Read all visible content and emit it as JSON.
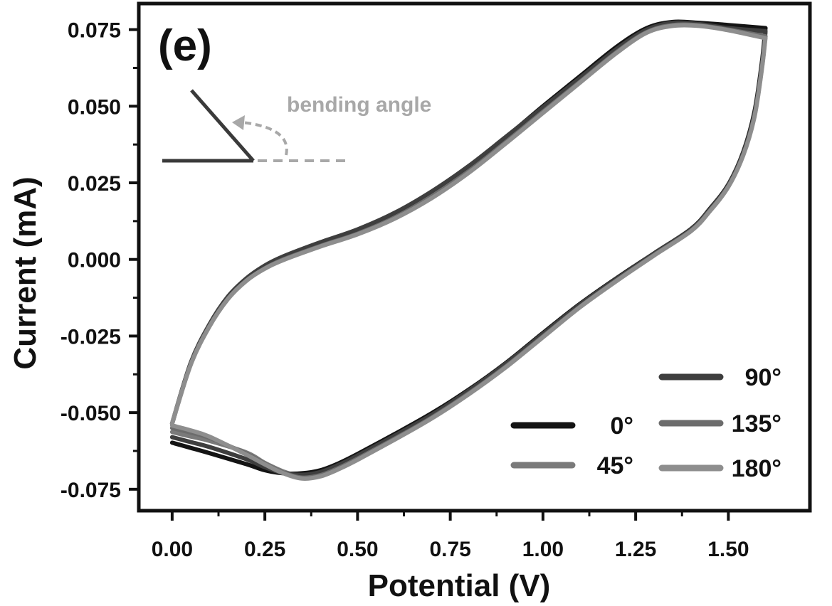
{
  "chart_data": {
    "type": "line",
    "panel_label": "(e)",
    "xlabel": "Potential (V)",
    "ylabel": "Current (mA)",
    "xlim": [
      -0.09,
      1.72
    ],
    "ylim": [
      -0.082,
      0.0835
    ],
    "xticks": [
      0.0,
      0.25,
      0.5,
      0.75,
      1.0,
      1.25,
      1.5
    ],
    "xtick_labels": [
      "0.00",
      "0.25",
      "0.50",
      "0.75",
      "1.00",
      "1.25",
      "1.50"
    ],
    "yticks": [
      0.075,
      0.05,
      0.025,
      0.0,
      -0.025,
      -0.05,
      -0.075
    ],
    "ytick_labels": [
      "0.075",
      "0.050",
      "0.025",
      "0.000",
      "-0.025",
      "-0.050",
      "-0.075"
    ],
    "grid": false,
    "legend_position": "bottom-right",
    "annotation": "bending angle",
    "series": [
      {
        "name": "0°",
        "color": "#141414",
        "forward": [
          [
            0.0,
            -0.0535
          ],
          [
            0.05,
            -0.034
          ],
          [
            0.1,
            -0.0215
          ],
          [
            0.15,
            -0.0125
          ],
          [
            0.2,
            -0.0065
          ],
          [
            0.25,
            -0.0025
          ],
          [
            0.3,
            0.0005
          ],
          [
            0.4,
            0.005
          ],
          [
            0.5,
            0.0092
          ],
          [
            0.6,
            0.0145
          ],
          [
            0.7,
            0.0215
          ],
          [
            0.8,
            0.03
          ],
          [
            0.9,
            0.0398
          ],
          [
            1.0,
            0.05
          ],
          [
            1.1,
            0.0598
          ],
          [
            1.2,
            0.0695
          ],
          [
            1.28,
            0.0755
          ],
          [
            1.35,
            0.0775
          ],
          [
            1.42,
            0.0772
          ],
          [
            1.5,
            0.0765
          ],
          [
            1.6,
            0.0755
          ]
        ],
        "reverse": [
          [
            1.6,
            0.0755
          ],
          [
            1.59,
            0.064
          ],
          [
            1.57,
            0.048
          ],
          [
            1.54,
            0.035
          ],
          [
            1.5,
            0.0245
          ],
          [
            1.45,
            0.0165
          ],
          [
            1.4,
            0.01
          ],
          [
            1.3,
            0.002
          ],
          [
            1.2,
            -0.006
          ],
          [
            1.1,
            -0.0145
          ],
          [
            1.0,
            -0.024
          ],
          [
            0.9,
            -0.0338
          ],
          [
            0.8,
            -0.0425
          ],
          [
            0.7,
            -0.0502
          ],
          [
            0.6,
            -0.057
          ],
          [
            0.5,
            -0.0635
          ],
          [
            0.45,
            -0.0665
          ],
          [
            0.4,
            -0.0688
          ],
          [
            0.35,
            -0.0698
          ],
          [
            0.3,
            -0.0698
          ],
          [
            0.25,
            -0.0688
          ],
          [
            0.2,
            -0.0668
          ],
          [
            0.1,
            -0.0632
          ],
          [
            0.05,
            -0.0615
          ],
          [
            0.0,
            -0.0598
          ]
        ]
      },
      {
        "name": "45°",
        "color": "#7a7a7a",
        "forward": [
          [
            0.0,
            -0.0535
          ],
          [
            0.05,
            -0.0342
          ],
          [
            0.1,
            -0.0218
          ],
          [
            0.15,
            -0.0128
          ],
          [
            0.2,
            -0.0068
          ],
          [
            0.25,
            -0.0028
          ],
          [
            0.3,
            0.0001
          ],
          [
            0.4,
            0.0045
          ],
          [
            0.5,
            0.0086
          ],
          [
            0.6,
            0.0138
          ],
          [
            0.7,
            0.0207
          ],
          [
            0.8,
            0.029
          ],
          [
            0.9,
            0.0386
          ],
          [
            1.0,
            0.0486
          ],
          [
            1.1,
            0.0584
          ],
          [
            1.2,
            0.0682
          ],
          [
            1.28,
            0.0745
          ],
          [
            1.35,
            0.0768
          ],
          [
            1.42,
            0.0766
          ],
          [
            1.5,
            0.0752
          ],
          [
            1.6,
            0.074
          ]
        ],
        "reverse": [
          [
            1.6,
            0.074
          ],
          [
            1.59,
            0.0628
          ],
          [
            1.57,
            0.047
          ],
          [
            1.54,
            0.0345
          ],
          [
            1.5,
            0.0242
          ],
          [
            1.45,
            0.0162
          ],
          [
            1.4,
            0.0098
          ],
          [
            1.3,
            0.0018
          ],
          [
            1.2,
            -0.0064
          ],
          [
            1.1,
            -0.015
          ],
          [
            1.0,
            -0.0247
          ],
          [
            0.9,
            -0.0345
          ],
          [
            0.8,
            -0.0433
          ],
          [
            0.7,
            -0.0512
          ],
          [
            0.6,
            -0.058
          ],
          [
            0.5,
            -0.0645
          ],
          [
            0.45,
            -0.0676
          ],
          [
            0.4,
            -0.07
          ],
          [
            0.35,
            -0.0708
          ],
          [
            0.3,
            -0.0692
          ],
          [
            0.25,
            -0.0664
          ],
          [
            0.2,
            -0.063
          ],
          [
            0.1,
            -0.0592
          ],
          [
            0.05,
            -0.0578
          ],
          [
            0.0,
            -0.0563
          ]
        ]
      },
      {
        "name": "90°",
        "color": "#3e3e3e",
        "forward": [
          [
            0.0,
            -0.0535
          ],
          [
            0.05,
            -0.0338
          ],
          [
            0.1,
            -0.0213
          ],
          [
            0.15,
            -0.0122
          ],
          [
            0.2,
            -0.0062
          ],
          [
            0.25,
            -0.002
          ],
          [
            0.3,
            0.001
          ],
          [
            0.4,
            0.0056
          ],
          [
            0.5,
            0.0098
          ],
          [
            0.6,
            0.0152
          ],
          [
            0.7,
            0.0222
          ],
          [
            0.8,
            0.0305
          ],
          [
            0.9,
            0.04
          ],
          [
            1.0,
            0.0496
          ],
          [
            1.1,
            0.0592
          ],
          [
            1.2,
            0.0688
          ],
          [
            1.28,
            0.075
          ],
          [
            1.35,
            0.0772
          ],
          [
            1.42,
            0.0768
          ],
          [
            1.5,
            0.0755
          ],
          [
            1.6,
            0.0745
          ]
        ],
        "reverse": [
          [
            1.6,
            0.0745
          ],
          [
            1.59,
            0.0632
          ],
          [
            1.57,
            0.0473
          ],
          [
            1.54,
            0.0347
          ],
          [
            1.5,
            0.0243
          ],
          [
            1.45,
            0.0163
          ],
          [
            1.4,
            0.0099
          ],
          [
            1.3,
            0.0019
          ],
          [
            1.2,
            -0.0062
          ],
          [
            1.1,
            -0.0147
          ],
          [
            1.0,
            -0.0243
          ],
          [
            0.9,
            -0.034
          ],
          [
            0.8,
            -0.0428
          ],
          [
            0.7,
            -0.0507
          ],
          [
            0.6,
            -0.0575
          ],
          [
            0.5,
            -0.064
          ],
          [
            0.45,
            -0.067
          ],
          [
            0.4,
            -0.0694
          ],
          [
            0.35,
            -0.0703
          ],
          [
            0.3,
            -0.0697
          ],
          [
            0.25,
            -0.0678
          ],
          [
            0.2,
            -0.0652
          ],
          [
            0.1,
            -0.0612
          ],
          [
            0.05,
            -0.0596
          ],
          [
            0.0,
            -0.058
          ]
        ]
      },
      {
        "name": "135°",
        "color": "#6c6c6c",
        "forward": [
          [
            0.0,
            -0.0535
          ],
          [
            0.05,
            -0.0343
          ],
          [
            0.1,
            -0.0219
          ],
          [
            0.15,
            -0.0129
          ],
          [
            0.2,
            -0.0069
          ],
          [
            0.25,
            -0.0029
          ],
          [
            0.3,
            0.0
          ],
          [
            0.4,
            0.0044
          ],
          [
            0.5,
            0.0084
          ],
          [
            0.6,
            0.0136
          ],
          [
            0.7,
            0.0204
          ],
          [
            0.8,
            0.0287
          ],
          [
            0.9,
            0.0383
          ],
          [
            1.0,
            0.0482
          ],
          [
            1.1,
            0.058
          ],
          [
            1.2,
            0.0678
          ],
          [
            1.28,
            0.0742
          ],
          [
            1.35,
            0.0765
          ],
          [
            1.42,
            0.0764
          ],
          [
            1.5,
            0.075
          ],
          [
            1.6,
            0.0728
          ]
        ],
        "reverse": [
          [
            1.6,
            0.0728
          ],
          [
            1.59,
            0.0622
          ],
          [
            1.57,
            0.0466
          ],
          [
            1.54,
            0.0341
          ],
          [
            1.5,
            0.0239
          ],
          [
            1.45,
            0.0159
          ],
          [
            1.4,
            0.0095
          ],
          [
            1.3,
            0.0015
          ],
          [
            1.2,
            -0.0067
          ],
          [
            1.1,
            -0.0154
          ],
          [
            1.0,
            -0.0251
          ],
          [
            0.9,
            -0.0349
          ],
          [
            0.8,
            -0.0437
          ],
          [
            0.7,
            -0.0516
          ],
          [
            0.6,
            -0.0585
          ],
          [
            0.5,
            -0.065
          ],
          [
            0.45,
            -0.068
          ],
          [
            0.4,
            -0.0704
          ],
          [
            0.35,
            -0.0712
          ],
          [
            0.3,
            -0.0696
          ],
          [
            0.25,
            -0.0667
          ],
          [
            0.2,
            -0.0634
          ],
          [
            0.1,
            -0.0582
          ],
          [
            0.05,
            -0.0565
          ],
          [
            0.0,
            -0.055
          ]
        ]
      },
      {
        "name": "180°",
        "color": "#8e8e8e",
        "forward": [
          [
            0.0,
            -0.0535
          ],
          [
            0.05,
            -0.0344
          ],
          [
            0.1,
            -0.022
          ],
          [
            0.15,
            -0.013
          ],
          [
            0.2,
            -0.007
          ],
          [
            0.25,
            -0.003
          ],
          [
            0.3,
            -0.0002
          ],
          [
            0.4,
            0.0042
          ],
          [
            0.5,
            0.0082
          ],
          [
            0.6,
            0.0133
          ],
          [
            0.7,
            0.02
          ],
          [
            0.8,
            0.0283
          ],
          [
            0.9,
            0.0379
          ],
          [
            1.0,
            0.0478
          ],
          [
            1.1,
            0.0577
          ],
          [
            1.2,
            0.0675
          ],
          [
            1.28,
            0.074
          ],
          [
            1.35,
            0.0762
          ],
          [
            1.42,
            0.0762
          ],
          [
            1.5,
            0.0748
          ],
          [
            1.6,
            0.0722
          ]
        ],
        "reverse": [
          [
            1.6,
            0.0722
          ],
          [
            1.59,
            0.0618
          ],
          [
            1.57,
            0.0463
          ],
          [
            1.54,
            0.0339
          ],
          [
            1.5,
            0.0237
          ],
          [
            1.45,
            0.0157
          ],
          [
            1.4,
            0.0093
          ],
          [
            1.3,
            0.0013
          ],
          [
            1.2,
            -0.0069
          ],
          [
            1.1,
            -0.0156
          ],
          [
            1.0,
            -0.0254
          ],
          [
            0.9,
            -0.0352
          ],
          [
            0.8,
            -0.044
          ],
          [
            0.7,
            -0.0519
          ],
          [
            0.6,
            -0.0588
          ],
          [
            0.5,
            -0.0654
          ],
          [
            0.45,
            -0.0684
          ],
          [
            0.4,
            -0.0708
          ],
          [
            0.35,
            -0.0715
          ],
          [
            0.3,
            -0.0698
          ],
          [
            0.25,
            -0.0669
          ],
          [
            0.2,
            -0.0637
          ],
          [
            0.1,
            -0.0578
          ],
          [
            0.05,
            -0.0558
          ],
          [
            0.0,
            -0.0542
          ]
        ]
      }
    ]
  }
}
